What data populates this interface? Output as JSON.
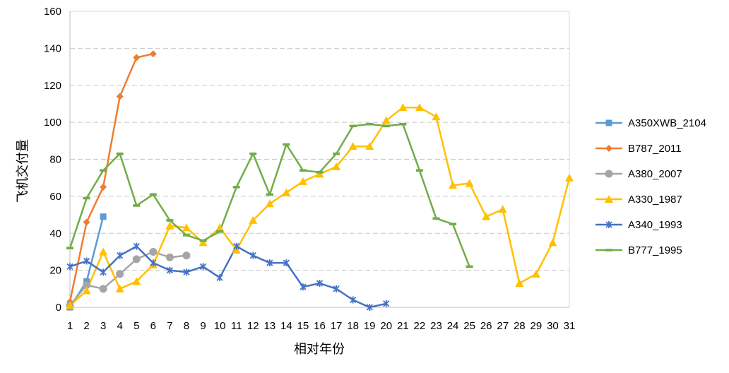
{
  "chart_data": {
    "type": "line",
    "xlabel": "相对年份",
    "ylabel": "飞机交付量",
    "xlim": [
      1,
      31
    ],
    "ylim": [
      0,
      160
    ],
    "x_ticks": [
      1,
      2,
      3,
      4,
      5,
      6,
      7,
      8,
      9,
      10,
      11,
      12,
      13,
      14,
      15,
      16,
      17,
      18,
      19,
      20,
      21,
      22,
      23,
      24,
      25,
      26,
      27,
      28,
      29,
      30,
      31
    ],
    "y_ticks": [
      0,
      20,
      40,
      60,
      80,
      100,
      120,
      140,
      160
    ],
    "grid": "horizontal-dashed",
    "legend_position": "right",
    "series": [
      {
        "name": "A350XWB_2104",
        "color": "#5b9bd5",
        "marker": "square",
        "x": [
          1,
          2,
          3
        ],
        "values": [
          0,
          14,
          49
        ]
      },
      {
        "name": "B787_2011",
        "color": "#ed7d31",
        "marker": "diamond",
        "x": [
          1,
          2,
          3,
          4,
          5,
          6
        ],
        "values": [
          3,
          46,
          65,
          114,
          135,
          137
        ]
      },
      {
        "name": "A380_2007",
        "color": "#a5a5a5",
        "marker": "circle",
        "x": [
          1,
          2,
          3,
          4,
          5,
          6,
          7,
          8
        ],
        "values": [
          1,
          12,
          10,
          18,
          26,
          30,
          27,
          28
        ]
      },
      {
        "name": "A330_1987",
        "color": "#ffc000",
        "marker": "triangle",
        "x": [
          1,
          2,
          3,
          4,
          5,
          6,
          7,
          8,
          9,
          10,
          11,
          12,
          13,
          14,
          15,
          16,
          17,
          18,
          19,
          20,
          21,
          22,
          23,
          24,
          25,
          26,
          27,
          28,
          29,
          30,
          31
        ],
        "values": [
          1,
          9,
          30,
          10,
          14,
          23,
          44,
          43,
          35,
          43,
          31,
          47,
          56,
          62,
          68,
          72,
          76,
          87,
          87,
          101,
          108,
          108,
          103,
          66,
          67,
          49,
          53,
          13,
          18,
          35,
          70
        ]
      },
      {
        "name": "A340_1993",
        "color": "#4472c4",
        "marker": "star",
        "x": [
          1,
          2,
          3,
          4,
          5,
          6,
          7,
          8,
          9,
          10,
          11,
          12,
          13,
          14,
          15,
          16,
          17,
          18,
          19,
          20
        ],
        "values": [
          22,
          25,
          19,
          28,
          33,
          24,
          20,
          19,
          22,
          16,
          33,
          28,
          24,
          24,
          11,
          13,
          10,
          4,
          0,
          2
        ]
      },
      {
        "name": "B777_1995",
        "color": "#70ad47",
        "marker": "dash",
        "x": [
          1,
          2,
          3,
          4,
          5,
          6,
          7,
          8,
          9,
          10,
          11,
          12,
          13,
          14,
          15,
          16,
          17,
          18,
          19,
          20,
          21,
          22,
          23,
          24,
          25
        ],
        "values": [
          32,
          59,
          74,
          83,
          55,
          61,
          47,
          39,
          36,
          41,
          65,
          83,
          61,
          88,
          74,
          73,
          83,
          98,
          99,
          98,
          99,
          74,
          48,
          45,
          22
        ]
      }
    ]
  }
}
